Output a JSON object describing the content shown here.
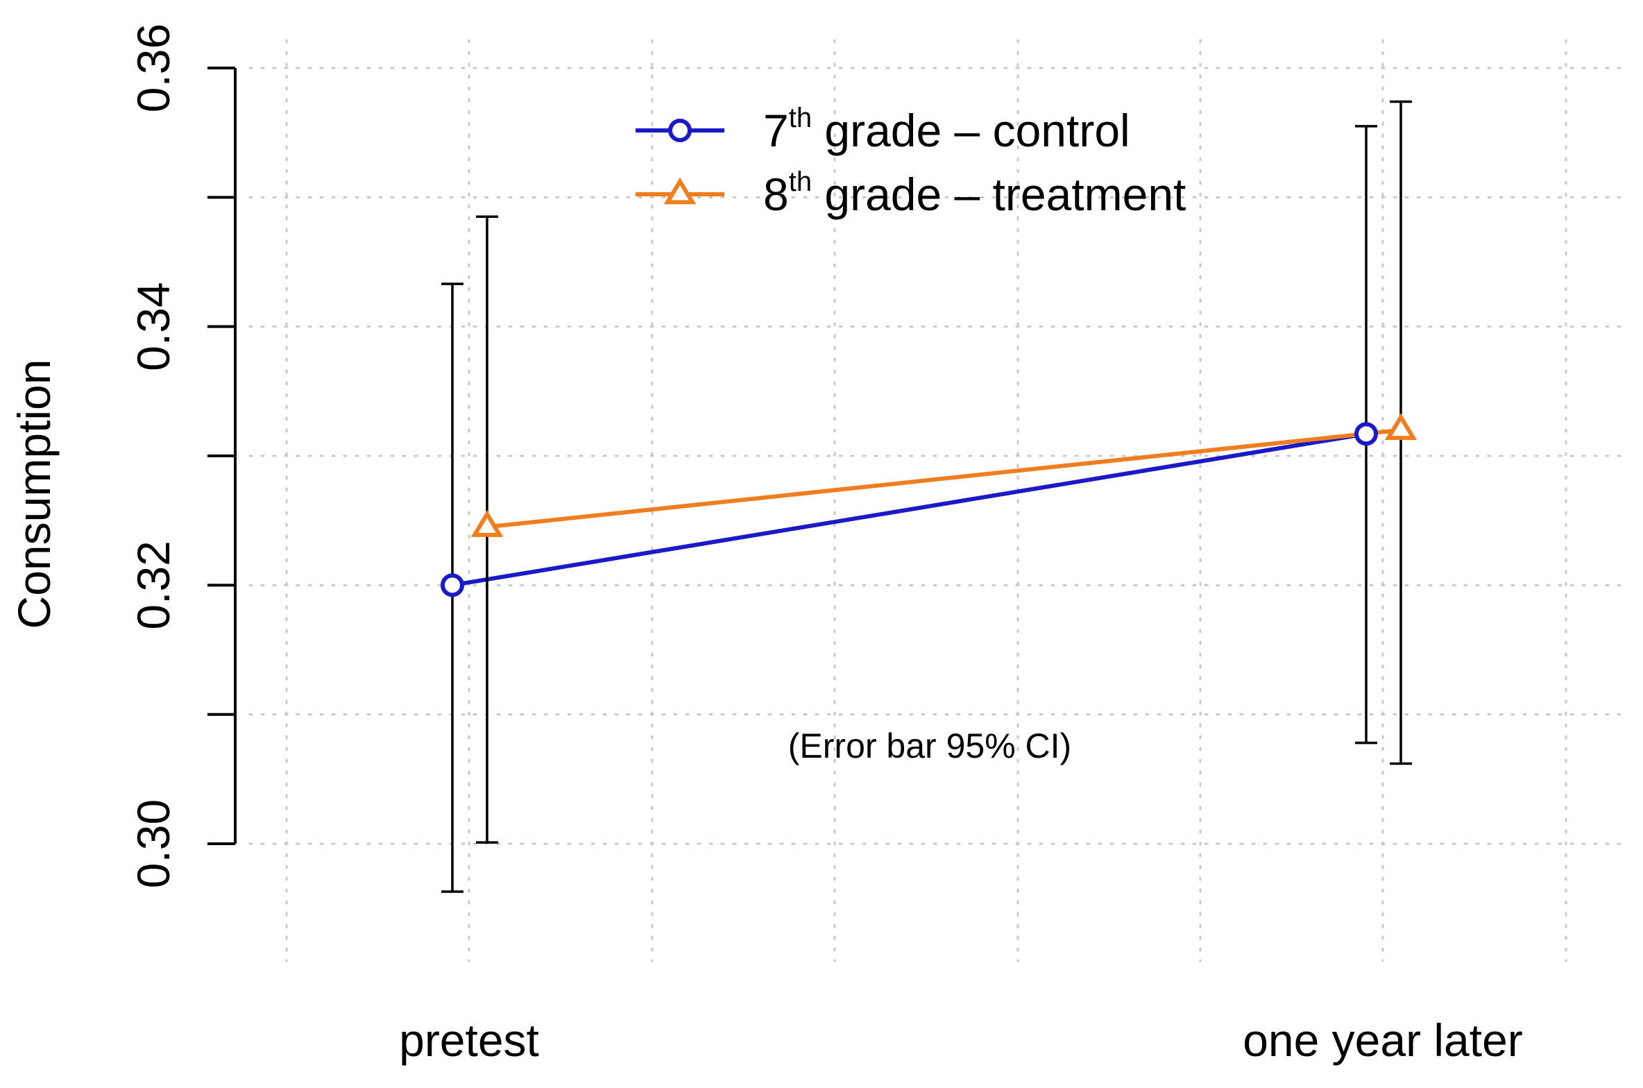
{
  "chart_data": {
    "type": "line",
    "title": "",
    "xlabel": "",
    "ylabel": "Consumption",
    "ylim": [
      0.3,
      0.36
    ],
    "yticks": [
      0.3,
      0.32,
      0.34,
      0.36
    ],
    "ytick_labels": [
      "0.30",
      "0.32",
      "0.34",
      "0.36"
    ],
    "categories": [
      "pretest",
      "one year later"
    ],
    "annotation": "(Error bar 95% CI)",
    "grid": true,
    "legend_position": "top",
    "series": [
      {
        "name": "7th grade – control",
        "legend_prefix": "7",
        "legend_sup": "th",
        "legend_suffix": " grade – control",
        "color": "#1a1ac8",
        "marker": "circle",
        "values": [
          0.32,
          0.3317
        ],
        "ci_lower": [
          0.2963,
          0.3078
        ],
        "ci_upper": [
          0.3433,
          0.3555
        ]
      },
      {
        "name": "8th grade – treatment",
        "legend_prefix": "8",
        "legend_sup": "th",
        "legend_suffix": " grade – treatment",
        "color": "#f07d1e",
        "marker": "triangle",
        "values": [
          0.3245,
          0.332
        ],
        "ci_lower": [
          0.3001,
          0.3062
        ],
        "ci_upper": [
          0.3485,
          0.3574
        ]
      }
    ]
  }
}
